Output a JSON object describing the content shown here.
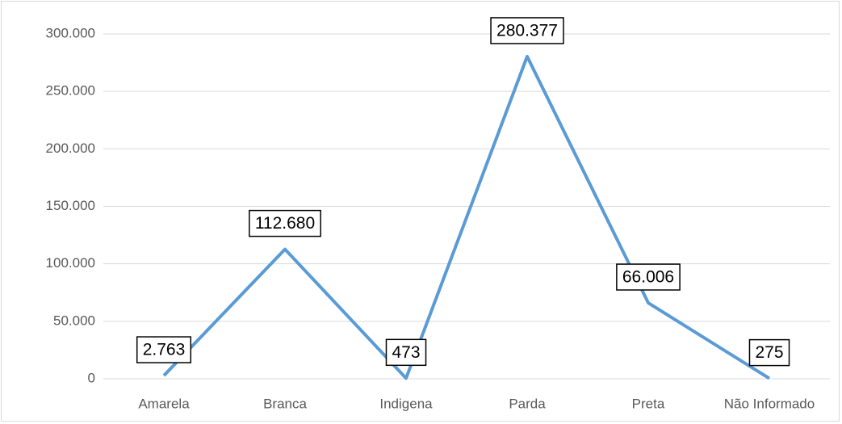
{
  "chart_data": {
    "type": "line",
    "categories": [
      "Amarela",
      "Branca",
      "Indigena",
      "Parda",
      "Preta",
      "Não Informado"
    ],
    "series": [
      {
        "color": "#5b9bd5",
        "values": [
          2763,
          112680,
          473,
          280377,
          66006,
          275
        ],
        "value_labels": [
          "2.763",
          "112.680",
          "473",
          "280.377",
          "66.006",
          "275"
        ]
      }
    ],
    "ylim": [
      0,
      300000
    ],
    "yticks": [
      0,
      {
        "value": 50000,
        "label": "50.000"
      },
      {
        "value": 100000,
        "label": "100.000"
      },
      {
        "value": 150000,
        "label": "150.000"
      },
      {
        "value": 200000,
        "label": "200.000"
      },
      {
        "value": 250000,
        "label": "250.000"
      },
      {
        "value": 300000,
        "label": "300.000"
      }
    ],
    "grid": true
  }
}
